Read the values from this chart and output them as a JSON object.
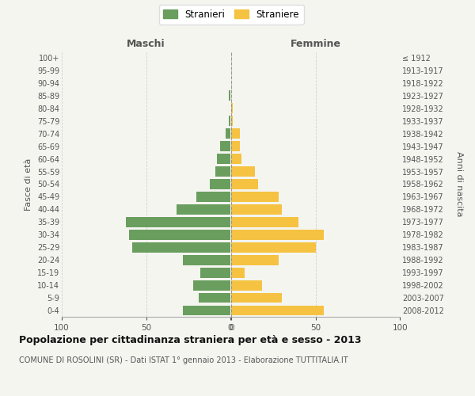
{
  "age_groups": [
    "0-4",
    "5-9",
    "10-14",
    "15-19",
    "20-24",
    "25-29",
    "30-34",
    "35-39",
    "40-44",
    "45-49",
    "50-54",
    "55-59",
    "60-64",
    "65-69",
    "70-74",
    "75-79",
    "80-84",
    "85-89",
    "90-94",
    "95-99",
    "100+"
  ],
  "birth_years": [
    "2008-2012",
    "2003-2007",
    "1998-2002",
    "1993-1997",
    "1988-1992",
    "1983-1987",
    "1978-1982",
    "1973-1977",
    "1968-1972",
    "1963-1967",
    "1958-1962",
    "1953-1957",
    "1948-1952",
    "1943-1947",
    "1938-1942",
    "1933-1937",
    "1928-1932",
    "1923-1927",
    "1918-1922",
    "1913-1917",
    "≤ 1912"
  ],
  "maschi": [
    28,
    19,
    22,
    18,
    28,
    58,
    60,
    62,
    32,
    20,
    12,
    9,
    8,
    6,
    3,
    1,
    0,
    1,
    0,
    0,
    0
  ],
  "femmine": [
    55,
    30,
    18,
    8,
    28,
    50,
    55,
    40,
    30,
    28,
    16,
    14,
    6,
    5,
    5,
    1,
    1,
    0,
    0,
    0,
    0
  ],
  "male_color": "#6a9e5f",
  "female_color": "#f5c242",
  "background_color": "#f5f5f0",
  "grid_color": "#cccccc",
  "title": "Popolazione per cittadinanza straniera per età e sesso - 2013",
  "subtitle": "COMUNE DI ROSOLINI (SR) - Dati ISTAT 1° gennaio 2013 - Elaborazione TUTTITALIA.IT",
  "xlabel_left": "Maschi",
  "xlabel_right": "Femmine",
  "ylabel_left": "Fasce di età",
  "ylabel_right": "Anni di nascita",
  "legend_male": "Stranieri",
  "legend_female": "Straniere",
  "xlim": 100
}
